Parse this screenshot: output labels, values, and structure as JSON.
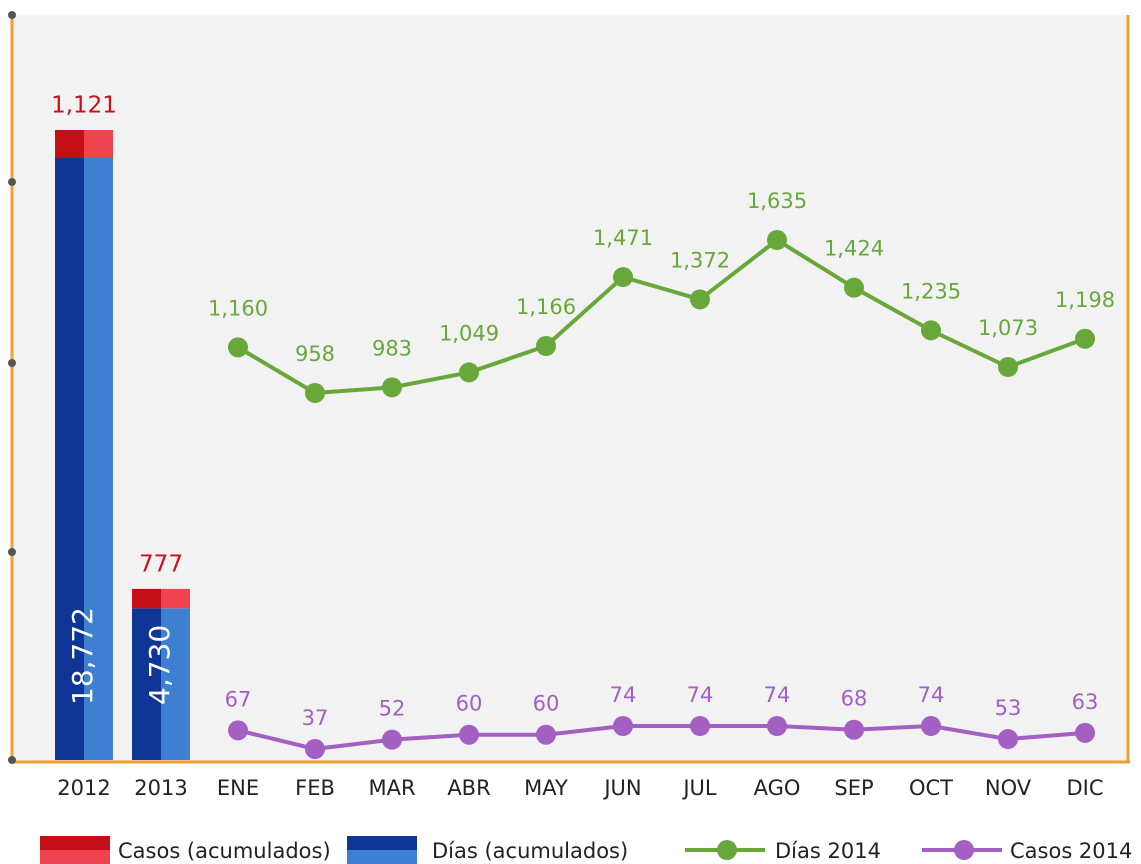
{
  "chart_data": {
    "type": "combo",
    "categories": [
      "2012",
      "2013",
      "ENE",
      "FEB",
      "MAR",
      "ABR",
      "MAY",
      "JUN",
      "JUL",
      "AGO",
      "SEP",
      "OCT",
      "NOV",
      "DIC"
    ],
    "series": [
      {
        "name": "Casos (acumulados)",
        "kind": "bar",
        "colors": [
          "#c40f19",
          "#ef4350"
        ],
        "values": [
          1121,
          777,
          null,
          null,
          null,
          null,
          null,
          null,
          null,
          null,
          null,
          null,
          null,
          null
        ],
        "value_labels": [
          "1,121",
          "777",
          null,
          null,
          null,
          null,
          null,
          null,
          null,
          null,
          null,
          null,
          null,
          null
        ]
      },
      {
        "name": "Días (acumulados)",
        "kind": "bar",
        "colors": [
          "#0f3597",
          "#3d7fd1"
        ],
        "values": [
          18772,
          4730,
          null,
          null,
          null,
          null,
          null,
          null,
          null,
          null,
          null,
          null,
          null,
          null
        ],
        "value_labels": [
          "18,772",
          "4,730",
          null,
          null,
          null,
          null,
          null,
          null,
          null,
          null,
          null,
          null,
          null,
          null
        ]
      },
      {
        "name": "Días 2014",
        "kind": "line",
        "color": "#68a83a",
        "values": [
          null,
          null,
          1160,
          958,
          983,
          1049,
          1166,
          1471,
          1372,
          1635,
          1424,
          1235,
          1073,
          1198
        ],
        "value_labels": [
          null,
          null,
          "1,160",
          "958",
          "983",
          "1,049",
          "1,166",
          "1,471",
          "1,372",
          "1,635",
          "1,424",
          "1,235",
          "1,073",
          "1,198"
        ]
      },
      {
        "name": "Casos 2014",
        "kind": "line",
        "color": "#a35fc2",
        "values": [
          null,
          null,
          67,
          37,
          52,
          60,
          60,
          74,
          74,
          74,
          68,
          74,
          53,
          63
        ]
      }
    ]
  }
}
